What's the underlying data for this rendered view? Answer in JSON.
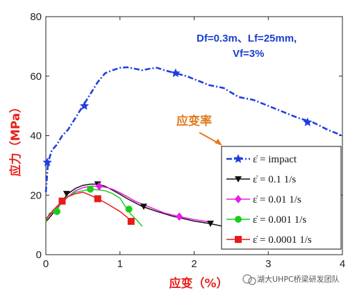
{
  "chart_data": {
    "type": "line",
    "xlim": [
      0,
      4
    ],
    "ylim": [
      0,
      80
    ],
    "xticks": [
      "0",
      "1",
      "2",
      "3",
      "4"
    ],
    "yticks": [
      "0",
      "20",
      "40",
      "60",
      "80"
    ],
    "xlabel": "应变（%）",
    "ylabel": "应力（MPa）",
    "grid": false,
    "legend_position": "bottom-right",
    "annotation_line1": "Df=0.3m、Lf=25mm,",
    "annotation_line2": "Vf=3%",
    "callout": "应变率",
    "series": [
      {
        "name": "ε̇ = impact",
        "color": "#1f3fe0",
        "dash": "8,3,2,3",
        "marker": "star",
        "x": [
          0,
          0.03,
          0.08,
          0.15,
          0.22,
          0.3,
          0.4,
          0.5,
          0.6,
          0.7,
          0.8,
          0.9,
          1.0,
          1.1,
          1.2,
          1.3,
          1.4,
          1.5,
          1.6,
          1.75,
          1.9,
          2.0,
          2.2,
          2.4,
          2.6,
          2.8,
          3.0,
          3.2,
          3.4,
          3.6,
          3.8,
          4.0
        ],
        "y": [
          21,
          31,
          35,
          37,
          40,
          42,
          46,
          50,
          54,
          58,
          61,
          62,
          62.8,
          63,
          62.5,
          62,
          62.5,
          62.8,
          62,
          61,
          60,
          59,
          57,
          56,
          53,
          52,
          50,
          48,
          46,
          44.5,
          42,
          40
        ],
        "markers_x": [
          0.02,
          0.52,
          1.75,
          3.53
        ],
        "markers_y": [
          31,
          50,
          61,
          44.5
        ]
      },
      {
        "name": "ε̇ = 0.1 1/s",
        "color": "#111111",
        "dash": "",
        "marker": "triangle-down",
        "x": [
          0,
          0.1,
          0.2,
          0.3,
          0.4,
          0.5,
          0.6,
          0.7,
          0.8,
          0.9,
          1.0,
          1.1,
          1.2,
          1.3,
          1.5,
          1.7,
          2.0,
          2.2,
          2.4
        ],
        "y": [
          11,
          14,
          17.5,
          20.5,
          22.3,
          23.3,
          23.7,
          23.7,
          23,
          21.7,
          20.3,
          18.8,
          17.5,
          16.2,
          14.5,
          13,
          11.3,
          10.5,
          9.5
        ],
        "markers_x": [
          0.28,
          0.7,
          1.32,
          2.22
        ],
        "markers_y": [
          20.5,
          23.7,
          16.2,
          10.5
        ]
      },
      {
        "name": "ε̇ = 0.01 1/s",
        "color": "#e81be8",
        "dash": "",
        "marker": "diamond",
        "x": [
          0,
          0.1,
          0.2,
          0.3,
          0.4,
          0.5,
          0.6,
          0.7,
          0.8,
          0.9,
          1.0,
          1.1,
          1.2,
          1.4,
          1.6,
          1.8,
          2.0,
          2.2
        ],
        "y": [
          12,
          14.5,
          17,
          19.5,
          21.5,
          22.5,
          23,
          23,
          22.7,
          22,
          20.8,
          19.5,
          18,
          16,
          14,
          12.8,
          11.8,
          11
        ],
        "markers_x": [
          0.72,
          1.8
        ],
        "markers_y": [
          23,
          12.8
        ]
      },
      {
        "name": "ε̇ = 0.001 1/s",
        "color": "#1ccc1c",
        "dash": "",
        "marker": "circle",
        "x": [
          0,
          0.05,
          0.1,
          0.15,
          0.2,
          0.3,
          0.4,
          0.5,
          0.6,
          0.7,
          0.8,
          0.9,
          1.0,
          1.05,
          1.1,
          1.15,
          1.25,
          1.3
        ],
        "y": [
          11,
          14,
          14.2,
          15,
          17,
          19.5,
          21,
          21.5,
          22,
          21.8,
          21.5,
          20.5,
          19,
          17,
          15.3,
          13.5,
          11,
          9.5
        ],
        "markers_x": [
          0.15,
          0.6,
          1.12
        ],
        "markers_y": [
          14.5,
          22,
          15.3
        ]
      },
      {
        "name": "ε̇ = 0.0001 1/s",
        "color": "#e81a1a",
        "dash": "",
        "marker": "square",
        "x": [
          0,
          0.1,
          0.2,
          0.3,
          0.4,
          0.5,
          0.6,
          0.7,
          0.8,
          0.9,
          1.0,
          1.1,
          1.15
        ],
        "y": [
          12,
          15,
          17.5,
          19.5,
          20.5,
          21,
          20,
          18.8,
          17.5,
          16,
          14.5,
          12.5,
          11
        ],
        "markers_x": [
          0.22,
          0.7,
          1.15
        ],
        "markers_y": [
          18,
          18.8,
          11.2
        ]
      }
    ]
  },
  "watermark": "湖大UHPC桥梁研发团队"
}
